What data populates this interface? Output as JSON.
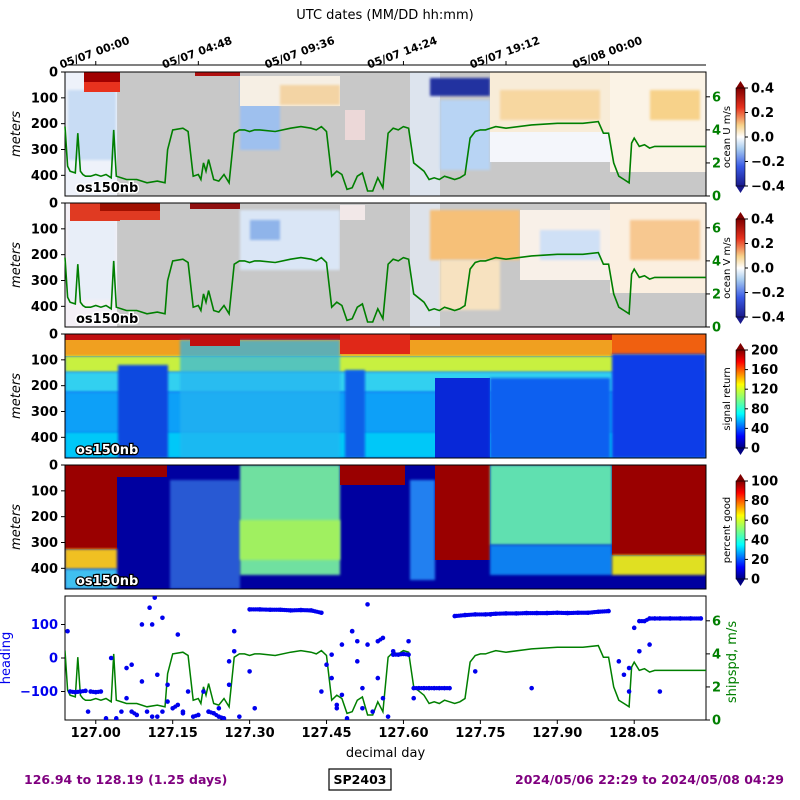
{
  "top_axis": {
    "title": "UTC dates (MM/DD hh:mm)",
    "ticks": [
      {
        "day": 127.0,
        "label": "05/07 00:00"
      },
      {
        "day": 127.2,
        "label": "05/07 04:48"
      },
      {
        "day": 127.4,
        "label": "05/07 09:36"
      },
      {
        "day": 127.6,
        "label": "05/07 14:24"
      },
      {
        "day": 127.8,
        "label": "05/07 19:12"
      },
      {
        "day": 128.0,
        "label": "05/08 00:00"
      }
    ]
  },
  "footer": {
    "range_days": "126.94 to 128.19 (1.25 days)",
    "cruise": "SP2403",
    "range_dates": "2024/05/06 22:29 to 2024/05/08 04:29"
  },
  "colors": {
    "shipspd": "#007f00",
    "heading": "#0000ee",
    "footer_text": "#7f007f",
    "nodata": "#c8c8c8"
  },
  "chart_data": [
    {
      "id": "u",
      "type": "heatmap",
      "ylabel": "meters",
      "yticks": [
        0,
        100,
        200,
        300,
        400
      ],
      "ylim": [
        480,
        0
      ],
      "instrument": "os150nb",
      "colorbar": {
        "label": "ocean U m/s",
        "ticks": [
          "0.4",
          "0.2",
          "0.0",
          "−0.2",
          "−0.4"
        ],
        "range": [
          -0.4,
          0.4
        ],
        "cmap": "bwr"
      },
      "right_axis": {
        "ticks": [
          "6",
          "4",
          "2",
          "0"
        ],
        "range": [
          0,
          7.5
        ]
      }
    },
    {
      "id": "v",
      "type": "heatmap",
      "ylabel": "meters",
      "yticks": [
        0,
        100,
        200,
        300,
        400
      ],
      "ylim": [
        480,
        0
      ],
      "instrument": "os150nb",
      "colorbar": {
        "label": "ocean V m/s",
        "ticks": [
          "0.4",
          "0.2",
          "0.0",
          "−0.2",
          "−0.4"
        ],
        "range": [
          -0.4,
          0.4
        ],
        "cmap": "bwr"
      },
      "right_axis": {
        "ticks": [
          "6",
          "4",
          "2",
          "0"
        ],
        "range": [
          0,
          7.5
        ]
      }
    },
    {
      "id": "amp",
      "type": "heatmap",
      "ylabel": "meters",
      "yticks": [
        0,
        100,
        200,
        300,
        400
      ],
      "ylim": [
        480,
        0
      ],
      "instrument": "os150nb",
      "colorbar": {
        "label": "signal return",
        "ticks": [
          "200",
          "160",
          "120",
          "80",
          "40",
          "0"
        ],
        "range": [
          0,
          200
        ],
        "cmap": "jet"
      }
    },
    {
      "id": "pg",
      "type": "heatmap",
      "ylabel": "meters",
      "yticks": [
        0,
        100,
        200,
        300,
        400
      ],
      "ylim": [
        480,
        0
      ],
      "instrument": "os150nb",
      "colorbar": {
        "label": "percent good",
        "ticks": [
          "100",
          "80",
          "60",
          "40",
          "20",
          "0"
        ],
        "range": [
          0,
          100
        ],
        "cmap": "jet"
      }
    },
    {
      "id": "nav",
      "type": "scatter",
      "xlabel": "decimal day",
      "xticks": [
        "127.00",
        "127.15",
        "127.30",
        "127.45",
        "127.60",
        "127.75",
        "127.90",
        "128.05"
      ],
      "xlim": [
        126.94,
        128.19
      ],
      "ylabel": "heading",
      "yticks": [
        "100",
        "0",
        "−100"
      ],
      "ylim": [
        -185,
        185
      ],
      "right_ylabel": "shipspd, m/s",
      "right_ticks": [
        "6",
        "4",
        "2",
        "0"
      ],
      "right_ylim": [
        0,
        7.5
      ]
    }
  ],
  "shipspd_series": {
    "x": [
      126.94,
      126.945,
      126.95,
      126.96,
      126.965,
      126.97,
      126.975,
      126.98,
      126.99,
      127.0,
      127.01,
      127.02,
      127.03,
      127.035,
      127.04,
      127.06,
      127.08,
      127.1,
      127.12,
      127.135,
      127.14,
      127.15,
      127.17,
      127.18,
      127.19,
      127.2,
      127.205,
      127.21,
      127.215,
      127.22,
      127.23,
      127.24,
      127.25,
      127.26,
      127.27,
      127.28,
      127.29,
      127.3,
      127.31,
      127.32,
      127.35,
      127.38,
      127.4,
      127.42,
      127.43,
      127.44,
      127.45,
      127.46,
      127.47,
      127.48,
      127.49,
      127.5,
      127.51,
      127.52,
      127.53,
      127.54,
      127.55,
      127.56,
      127.57,
      127.58,
      127.59,
      127.6,
      127.61,
      127.62,
      127.64,
      127.65,
      127.66,
      127.67,
      127.68,
      127.69,
      127.7,
      127.71,
      127.72,
      127.73,
      127.74,
      127.75,
      127.76,
      127.77,
      127.78,
      127.8,
      127.85,
      127.9,
      127.95,
      127.98,
      127.99,
      128.0,
      128.01,
      128.02,
      128.03,
      128.04,
      128.045,
      128.05,
      128.06,
      128.07,
      128.08,
      128.09,
      128.1,
      128.19
    ],
    "values": [
      4.2,
      1.8,
      1.5,
      1.4,
      3.8,
      1.5,
      1.3,
      1.2,
      1.2,
      1.3,
      1.2,
      1.3,
      1.1,
      4.0,
      1.2,
      1.0,
      1.0,
      0.8,
      0.9,
      0.8,
      2.8,
      4.0,
      4.1,
      3.9,
      1.2,
      1.3,
      1.0,
      2.0,
      1.5,
      2.2,
      1.0,
      0.9,
      1.3,
      0.8,
      3.8,
      4.0,
      4.0,
      3.9,
      4.0,
      4.0,
      3.9,
      4.1,
      4.2,
      4.1,
      4.0,
      4.2,
      3.9,
      1.2,
      1.5,
      1.3,
      0.4,
      0.5,
      1.2,
      1.4,
      0.3,
      0.3,
      1.1,
      0.5,
      3.8,
      4.1,
      4.0,
      4.2,
      4.1,
      2.0,
      1.5,
      1.0,
      1.1,
      1.0,
      1.2,
      1.1,
      1.0,
      1.1,
      1.3,
      3.5,
      3.9,
      4.0,
      4.0,
      4.1,
      4.2,
      4.1,
      4.3,
      4.4,
      4.4,
      4.5,
      3.8,
      3.8,
      2.0,
      1.2,
      1.0,
      0.8,
      3.2,
      3.5,
      3.0,
      3.1,
      2.9,
      3.0,
      3.0,
      3.0
    ]
  },
  "heading_series": {
    "x": [
      126.945,
      126.95,
      126.96,
      126.97,
      126.98,
      126.985,
      126.99,
      127.0,
      127.01,
      127.02,
      127.03,
      127.04,
      127.05,
      127.06,
      127.07,
      127.08,
      127.09,
      127.1,
      127.105,
      127.11,
      127.115,
      127.12,
      127.13,
      127.14,
      127.15,
      127.16,
      127.17,
      127.18,
      127.19,
      127.2,
      127.21,
      127.22,
      127.23,
      127.24,
      127.25,
      127.26,
      127.27,
      127.28,
      127.3,
      127.32,
      127.34,
      127.36,
      127.38,
      127.4,
      127.42,
      127.44,
      127.46,
      127.47,
      127.48,
      127.49,
      127.5,
      127.51,
      127.52,
      127.53,
      127.54,
      127.55,
      127.56,
      127.57,
      127.58,
      127.59,
      127.6,
      127.61,
      127.62,
      127.63,
      127.64,
      127.65,
      127.66,
      127.67,
      127.68,
      127.69,
      127.7,
      127.72,
      127.74,
      127.76,
      127.78,
      127.8,
      127.82,
      127.84,
      127.86,
      127.88,
      127.9,
      127.92,
      127.94,
      127.96,
      127.98,
      128.0,
      128.02,
      128.03,
      128.04,
      128.05,
      128.06,
      128.07,
      128.08,
      128.09,
      128.1,
      128.12,
      128.14,
      128.16,
      128.18
    ],
    "values": [
      80,
      -100,
      -102,
      -100,
      -98,
      -160,
      -100,
      -102,
      -100,
      -180,
      0,
      -180,
      -160,
      -120,
      -160,
      -170,
      100,
      -160,
      150,
      -175,
      180,
      -175,
      -160,
      -80,
      -150,
      -140,
      -165,
      -100,
      -175,
      -170,
      -100,
      -160,
      -165,
      -175,
      -180,
      -10,
      80,
      -175,
      145,
      145,
      144,
      144,
      142,
      143,
      142,
      135,
      -60,
      -150,
      -110,
      -180,
      80,
      50,
      -150,
      40,
      -160,
      50,
      60,
      -175,
      10,
      10,
      12,
      10,
      -90,
      -90,
      -90,
      -90,
      -90,
      -90,
      -90,
      -90,
      125,
      128,
      130,
      130,
      132,
      133,
      133,
      134,
      134,
      134,
      135,
      134,
      135,
      135,
      138,
      140,
      -10,
      -50,
      -100,
      90,
      110,
      110,
      118,
      118,
      118,
      118,
      118,
      118,
      118
    ]
  },
  "heading_scatter": {
    "x": [
      127.06,
      127.07,
      127.09,
      127.11,
      127.12,
      127.13,
      127.14,
      127.16,
      127.17,
      127.22,
      127.24,
      127.26,
      127.27,
      127.3,
      127.31,
      127.44,
      127.45,
      127.46,
      127.47,
      127.48,
      127.5,
      127.51,
      127.52,
      127.53,
      127.55,
      127.56,
      127.58,
      127.61,
      127.62,
      127.74,
      127.77,
      127.85,
      128.04,
      128.06,
      128.08,
      128.1
    ],
    "values": [
      -30,
      -20,
      -70,
      100,
      -50,
      120,
      -130,
      70,
      -160,
      -160,
      -150,
      -80,
      20,
      -40,
      -150,
      -100,
      -20,
      10,
      -140,
      40,
      80,
      -10,
      -90,
      160,
      -60,
      -120,
      20,
      50,
      -120,
      -40,
      130,
      -90,
      -30,
      20,
      40,
      -100
    ]
  }
}
